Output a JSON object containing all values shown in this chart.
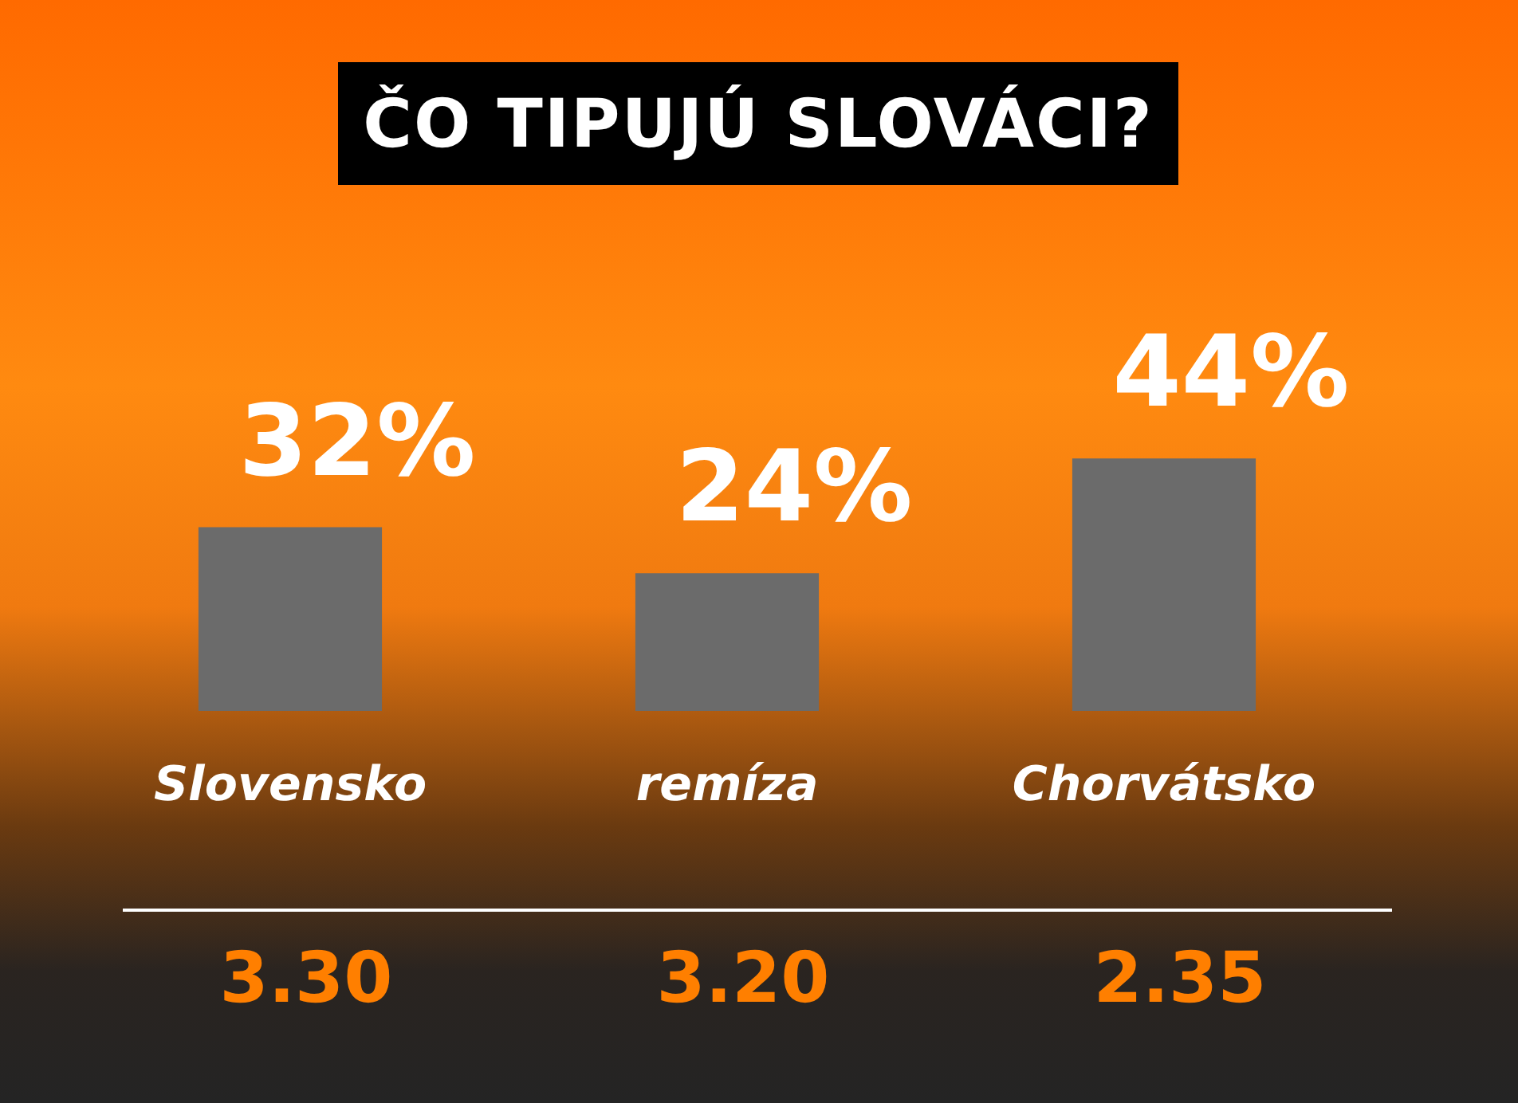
{
  "chart_data": {
    "type": "bar",
    "title": "ČO TIPUJÚ SLOVÁCI?",
    "categories": [
      "Slovensko",
      "remíza",
      "Chorvátsko"
    ],
    "values": [
      32,
      24,
      44
    ],
    "value_labels": [
      "32%",
      "24%",
      "44%"
    ],
    "color": "#6b6b6b",
    "grid": false,
    "legend": false,
    "annotations": [
      "3.30",
      "3.20",
      "2.35"
    ]
  }
}
